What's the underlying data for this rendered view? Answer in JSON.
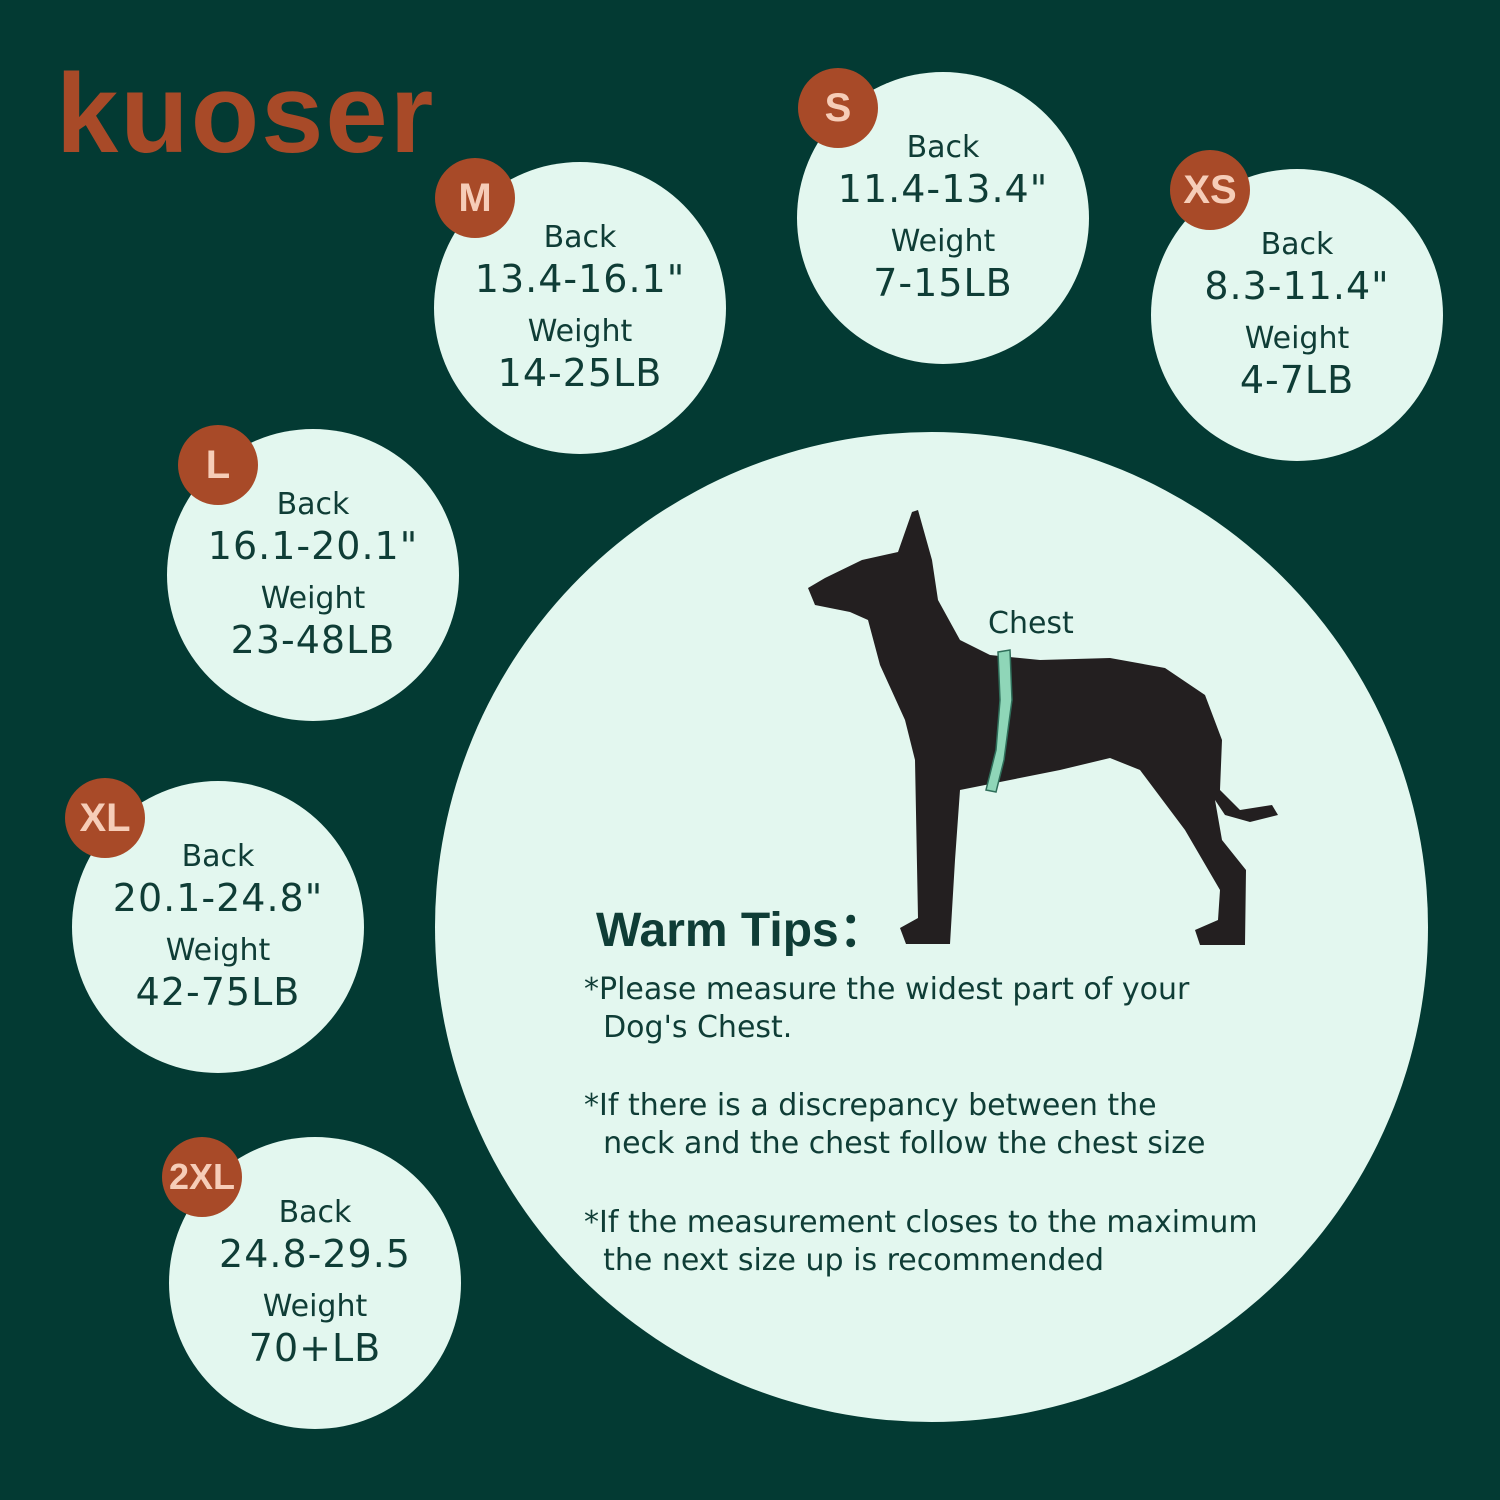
{
  "brand": {
    "logo": "kuoser",
    "colors": {
      "background": "#033a33",
      "circle": "#e3f7ef",
      "badge": "#a84a28",
      "text": "#0f3d36"
    }
  },
  "sizes": [
    {
      "size": "M",
      "back_label": "Back",
      "back": "13.4-16.1\"",
      "weight_label": "Weight",
      "weight": "14-25LB"
    },
    {
      "size": "S",
      "back_label": "Back",
      "back": "11.4-13.4\"",
      "weight_label": "Weight",
      "weight": "7-15LB"
    },
    {
      "size": "XS",
      "back_label": "Back",
      "back": "8.3-11.4\"",
      "weight_label": "Weight",
      "weight": "4-7LB"
    },
    {
      "size": "L",
      "back_label": "Back",
      "back": "16.1-20.1\"",
      "weight_label": "Weight",
      "weight": "23-48LB"
    },
    {
      "size": "XL",
      "back_label": "Back",
      "back": "20.1-24.8\"",
      "weight_label": "Weight",
      "weight": "42-75LB"
    },
    {
      "size": "2XL",
      "back_label": "Back",
      "back": "24.8-29.5",
      "weight_label": "Weight",
      "weight": "70+LB"
    }
  ],
  "diagram": {
    "chest_label": "Chest",
    "dog_icon": "dog-silhouette-icon",
    "tape_icon": "measuring-tape-icon"
  },
  "tips": {
    "title": "Warm Tips：",
    "items": [
      "*Please measure the widest part of your\n  Dog's Chest.",
      "*If there is a discrepancy between the\n  neck and the chest follow the chest size",
      "*If the measurement closes to the maximum\n  the next size up is recommended"
    ]
  }
}
